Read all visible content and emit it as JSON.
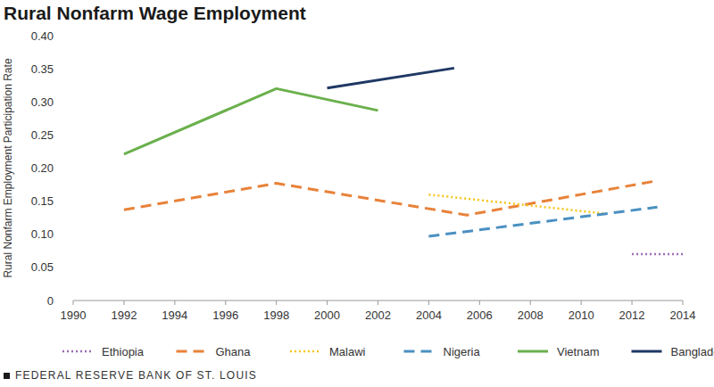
{
  "chart_data": {
    "type": "line",
    "title": "Rural Nonfarm Wage Employment",
    "y_label": "Rural Nonfarm Employment Participation Rate",
    "source": "FEDERAL RESERVE BANK OF ST. LOUIS",
    "xlim": [
      1990,
      2014
    ],
    "xticks": [
      1990,
      1992,
      1994,
      1996,
      1998,
      2000,
      2002,
      2004,
      2006,
      2008,
      2010,
      2012,
      2014
    ],
    "ylim": [
      0,
      0.4
    ],
    "yticks": [
      0,
      0.05,
      {
        "value": 0.1,
        "label": "0.10"
      },
      0.15,
      {
        "value": 0.2,
        "label": "0.20"
      },
      0.25,
      {
        "value": 0.3,
        "label": "0.30"
      },
      0.35,
      {
        "value": 0.4,
        "label": "0.40"
      }
    ],
    "grid": false,
    "legend": "bottom",
    "series": [
      {
        "name": "Ethiopia",
        "color": "#9b6bb3",
        "line_style": "dotted",
        "x": [
          2012,
          2014
        ],
        "values": [
          0.07,
          0.07
        ]
      },
      {
        "name": "Ghana",
        "color": "#e8823a",
        "line_style": "dashed",
        "x": [
          1992,
          1998,
          2005.5,
          2013
        ],
        "values": [
          0.137,
          0.177,
          0.129,
          0.181
        ]
      },
      {
        "name": "Malawi",
        "color": "#f5c518",
        "line_style": "dotted",
        "x": [
          2004,
          2011
        ],
        "values": [
          0.16,
          0.131
        ]
      },
      {
        "name": "Nigeria",
        "color": "#4a90c2",
        "line_style": "dashed",
        "x": [
          2004,
          2013
        ],
        "values": [
          0.097,
          0.141
        ]
      },
      {
        "name": "Vietnam",
        "color": "#6ab04c",
        "line_style": "solid",
        "x": [
          1992,
          1998,
          2002
        ],
        "values": [
          0.221,
          0.32,
          0.287
        ]
      },
      {
        "name": "Bangladesh",
        "color": "#1f3864",
        "line_style": "solid",
        "x": [
          2000,
          2005
        ],
        "values": [
          0.321,
          0.351
        ]
      }
    ]
  }
}
